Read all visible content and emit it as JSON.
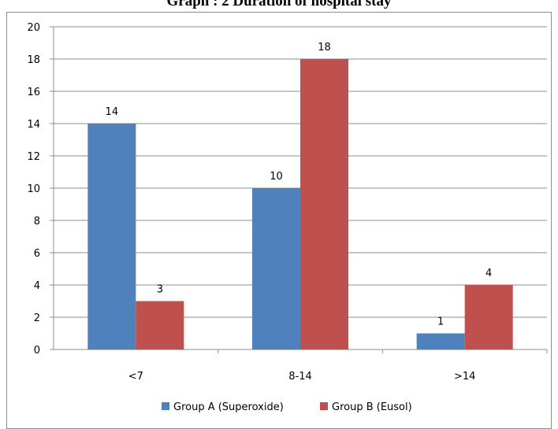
{
  "chart_data": {
    "type": "bar",
    "title": "Graph : 2 Duration of hospital stay",
    "categories": [
      "<7",
      "8-14",
      ">14"
    ],
    "series": [
      {
        "name": "Group A (Superoxide)",
        "values": [
          14,
          10,
          1
        ],
        "color": "#4f81bd"
      },
      {
        "name": "Group B (Eusol)",
        "values": [
          3,
          18,
          4
        ],
        "color": "#c0504d"
      }
    ],
    "ylim": [
      0,
      20
    ],
    "yticks": [
      0,
      2,
      4,
      6,
      8,
      10,
      12,
      14,
      16,
      18,
      20
    ],
    "grid": true,
    "legend": "bottom",
    "colors": {
      "grid": "#8c8c8c",
      "axis": "#8c8c8c"
    }
  }
}
